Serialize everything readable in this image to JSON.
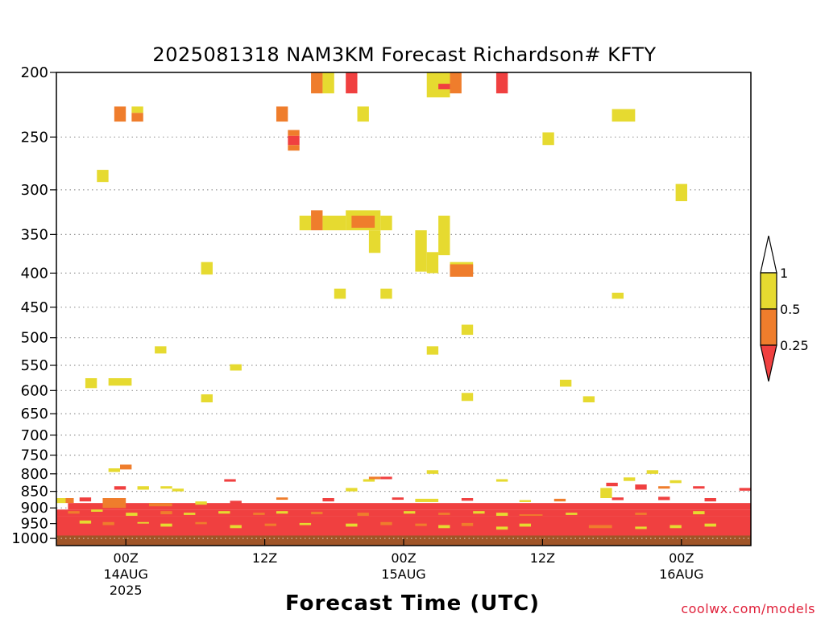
{
  "chart_data": {
    "type": "heatmap",
    "title": "2025081318 NAM3KM Forecast Richardson# KFTY",
    "xlabel": "Forecast Time (UTC)",
    "ylabel": "",
    "credit": "coolwx.com/models",
    "y_scale": "log",
    "ylim_hpa": [
      1025,
      200
    ],
    "xlim_hours": [
      0,
      60
    ],
    "grid": "dotted horizontal at y ticks",
    "y_ticks": [
      200,
      250,
      300,
      350,
      400,
      450,
      500,
      550,
      600,
      650,
      700,
      750,
      800,
      850,
      900,
      950,
      1000
    ],
    "y_tick_labels": [
      "200",
      "250",
      "300",
      "350",
      "400",
      "450",
      "500",
      "550",
      "600",
      "650",
      "700",
      "750",
      "800",
      "850",
      "900",
      "950",
      "1000"
    ],
    "x_ticks": [
      {
        "hour": 6,
        "label": "00Z",
        "date": "14AUG",
        "year": "2025"
      },
      {
        "hour": 18,
        "label": "12Z",
        "date": "",
        "year": ""
      },
      {
        "hour": 30,
        "label": "00Z",
        "date": "15AUG",
        "year": ""
      },
      {
        "hour": 42,
        "label": "12Z",
        "date": "",
        "year": ""
      },
      {
        "hour": 54,
        "label": "00Z",
        "date": "16AUG",
        "year": ""
      }
    ],
    "colorbar": {
      "levels": [
        {
          "range": "<0.25",
          "color": "#f04040"
        },
        {
          "range": "0.25-0.5",
          "color": "#ef7d2c"
        },
        {
          "range": "0.5-1",
          "color": "#e6da30"
        },
        {
          "range": ">1",
          "color": "#ffffff"
        }
      ],
      "tick_labels": [
        "1",
        "0.5",
        "0.25"
      ]
    },
    "ground": {
      "color": "#a05528",
      "top_hpa": 990
    },
    "cells": [
      [
        22,
        23,
        200,
        215,
        "o"
      ],
      [
        23,
        24,
        200,
        215,
        "y"
      ],
      [
        25,
        26,
        200,
        215,
        "r"
      ],
      [
        32,
        34,
        200,
        218,
        "y"
      ],
      [
        33,
        34,
        208,
        212,
        "r"
      ],
      [
        34,
        35,
        200,
        215,
        "o"
      ],
      [
        38,
        39,
        200,
        215,
        "r"
      ],
      [
        5,
        6,
        225,
        237,
        "o"
      ],
      [
        6.5,
        7.5,
        225,
        230,
        "y"
      ],
      [
        6.5,
        7.5,
        230,
        237,
        "o"
      ],
      [
        19,
        20,
        225,
        237,
        "o"
      ],
      [
        26,
        27,
        225,
        237,
        "y"
      ],
      [
        48,
        50,
        227,
        237,
        "y"
      ],
      [
        20,
        21,
        244,
        249,
        "o"
      ],
      [
        20,
        21,
        249,
        257,
        "r"
      ],
      [
        20,
        21,
        257,
        262,
        "o"
      ],
      [
        42,
        43,
        246,
        257,
        "y"
      ],
      [
        3.5,
        4.5,
        280,
        292,
        "y"
      ],
      [
        53.5,
        54.5,
        294,
        312,
        "y"
      ],
      [
        21,
        22,
        328,
        345,
        "y"
      ],
      [
        22,
        23,
        322,
        345,
        "o"
      ],
      [
        23,
        25,
        328,
        345,
        "y"
      ],
      [
        25,
        28,
        322,
        345,
        "y"
      ],
      [
        25.5,
        27.5,
        328,
        342,
        "o"
      ],
      [
        28,
        29,
        328,
        345,
        "y"
      ],
      [
        27,
        28,
        345,
        373,
        "y"
      ],
      [
        31,
        32,
        345,
        398,
        "y"
      ],
      [
        32,
        33,
        372,
        400,
        "y"
      ],
      [
        33,
        34,
        328,
        376,
        "y"
      ],
      [
        34,
        36,
        385,
        400,
        "y"
      ],
      [
        34,
        36,
        388,
        405,
        "o"
      ],
      [
        12.5,
        13.5,
        385,
        402,
        "y"
      ],
      [
        24,
        25,
        422,
        437,
        "y"
      ],
      [
        28,
        29,
        422,
        437,
        "y"
      ],
      [
        48,
        49,
        428,
        437,
        "y"
      ],
      [
        35,
        36,
        478,
        495,
        "y"
      ],
      [
        8.5,
        9.5,
        515,
        528,
        "y"
      ],
      [
        32,
        33,
        515,
        530,
        "y"
      ],
      [
        15,
        16,
        548,
        560,
        "y"
      ],
      [
        2.5,
        3.5,
        575,
        595,
        "y"
      ],
      [
        4.5,
        6.5,
        575,
        590,
        "y"
      ],
      [
        43.5,
        44.5,
        578,
        592,
        "y"
      ],
      [
        12.5,
        13.5,
        608,
        625,
        "y"
      ],
      [
        35,
        36,
        605,
        622,
        "y"
      ],
      [
        45.5,
        46.5,
        612,
        625,
        "y"
      ],
      [
        4.5,
        5.5,
        785,
        795,
        "y"
      ],
      [
        5.5,
        6.5,
        775,
        788,
        "o"
      ],
      [
        32,
        33,
        790,
        800,
        "y"
      ],
      [
        51,
        52,
        790,
        800,
        "y"
      ],
      [
        27,
        28,
        808,
        815,
        "o"
      ],
      [
        28,
        29,
        808,
        815,
        "r"
      ],
      [
        26.5,
        27.5,
        815,
        822,
        "y"
      ],
      [
        38,
        39,
        815,
        822,
        "y"
      ],
      [
        14.5,
        15.5,
        815,
        822,
        "r"
      ],
      [
        49,
        50,
        810,
        820,
        "y"
      ],
      [
        47.5,
        48.5,
        825,
        835,
        "r"
      ],
      [
        53,
        54,
        818,
        826,
        "y"
      ],
      [
        47,
        48,
        840,
        870,
        "y"
      ],
      [
        5,
        6,
        835,
        845,
        "r"
      ],
      [
        7,
        8,
        835,
        845,
        "y"
      ],
      [
        9,
        10,
        835,
        842,
        "y"
      ],
      [
        10,
        11,
        842,
        850,
        "y"
      ],
      [
        25,
        26,
        840,
        850,
        "y"
      ],
      [
        50,
        51,
        830,
        845,
        "r"
      ],
      [
        52,
        53,
        835,
        842,
        "o"
      ],
      [
        55,
        56,
        835,
        842,
        "r"
      ],
      [
        59,
        60,
        840,
        848,
        "r"
      ],
      [
        0,
        0.8,
        870,
        885,
        "y"
      ],
      [
        0.8,
        1.5,
        870,
        885,
        "o"
      ],
      [
        2,
        3,
        868,
        880,
        "r"
      ],
      [
        1,
        60,
        885,
        905,
        "r"
      ],
      [
        4,
        6,
        870,
        900,
        "o"
      ],
      [
        8,
        10,
        885,
        895,
        "o"
      ],
      [
        12,
        13,
        880,
        890,
        "y"
      ],
      [
        15,
        16,
        878,
        888,
        "r"
      ],
      [
        19,
        20,
        868,
        875,
        "o"
      ],
      [
        23,
        24,
        870,
        880,
        "r"
      ],
      [
        29,
        30,
        868,
        875,
        "r"
      ],
      [
        31,
        33,
        872,
        882,
        "y"
      ],
      [
        35,
        36,
        870,
        878,
        "r"
      ],
      [
        40,
        41,
        876,
        882,
        "y"
      ],
      [
        43,
        44,
        872,
        880,
        "o"
      ],
      [
        48,
        49,
        868,
        876,
        "r"
      ],
      [
        52,
        53,
        866,
        876,
        "r"
      ],
      [
        56,
        57,
        870,
        880,
        "r"
      ],
      [
        0,
        60,
        905,
        925,
        "r"
      ],
      [
        1,
        2,
        910,
        918,
        "o"
      ],
      [
        3,
        4,
        905,
        912,
        "y"
      ],
      [
        6,
        7,
        915,
        925,
        "y"
      ],
      [
        9,
        10,
        910,
        920,
        "o"
      ],
      [
        11,
        12,
        915,
        922,
        "y"
      ],
      [
        14,
        15,
        910,
        918,
        "y"
      ],
      [
        17,
        18,
        915,
        922,
        "o"
      ],
      [
        19,
        20,
        910,
        918,
        "y"
      ],
      [
        22,
        23,
        912,
        920,
        "o"
      ],
      [
        26,
        27,
        915,
        925,
        "o"
      ],
      [
        30,
        31,
        910,
        918,
        "y"
      ],
      [
        33,
        34,
        915,
        922,
        "o"
      ],
      [
        36,
        37,
        910,
        918,
        "y"
      ],
      [
        38,
        39,
        915,
        925,
        "y"
      ],
      [
        40,
        42,
        920,
        940,
        "o"
      ],
      [
        44,
        45,
        915,
        922,
        "y"
      ],
      [
        50,
        51,
        915,
        922,
        "o"
      ],
      [
        55,
        56,
        910,
        920,
        "y"
      ],
      [
        0,
        60,
        925,
        990,
        "r"
      ],
      [
        2,
        3,
        940,
        950,
        "y"
      ],
      [
        4,
        5,
        945,
        955,
        "o"
      ],
      [
        7,
        8,
        945,
        950,
        "y"
      ],
      [
        9,
        10,
        950,
        960,
        "y"
      ],
      [
        12,
        13,
        945,
        952,
        "o"
      ],
      [
        15,
        16,
        955,
        965,
        "y"
      ],
      [
        18,
        19,
        950,
        958,
        "o"
      ],
      [
        21,
        22,
        948,
        955,
        "y"
      ],
      [
        25,
        26,
        950,
        960,
        "y"
      ],
      [
        28,
        29,
        945,
        955,
        "o"
      ],
      [
        31,
        32,
        950,
        958,
        "o"
      ],
      [
        33,
        34,
        955,
        965,
        "y"
      ],
      [
        35,
        36,
        948,
        958,
        "o"
      ],
      [
        38,
        39,
        960,
        970,
        "y"
      ],
      [
        40,
        41,
        950,
        960,
        "y"
      ],
      [
        46,
        48,
        955,
        965,
        "o"
      ],
      [
        50,
        51,
        960,
        968,
        "y"
      ],
      [
        53,
        54,
        955,
        965,
        "y"
      ],
      [
        56,
        57,
        950,
        960,
        "y"
      ]
    ]
  }
}
